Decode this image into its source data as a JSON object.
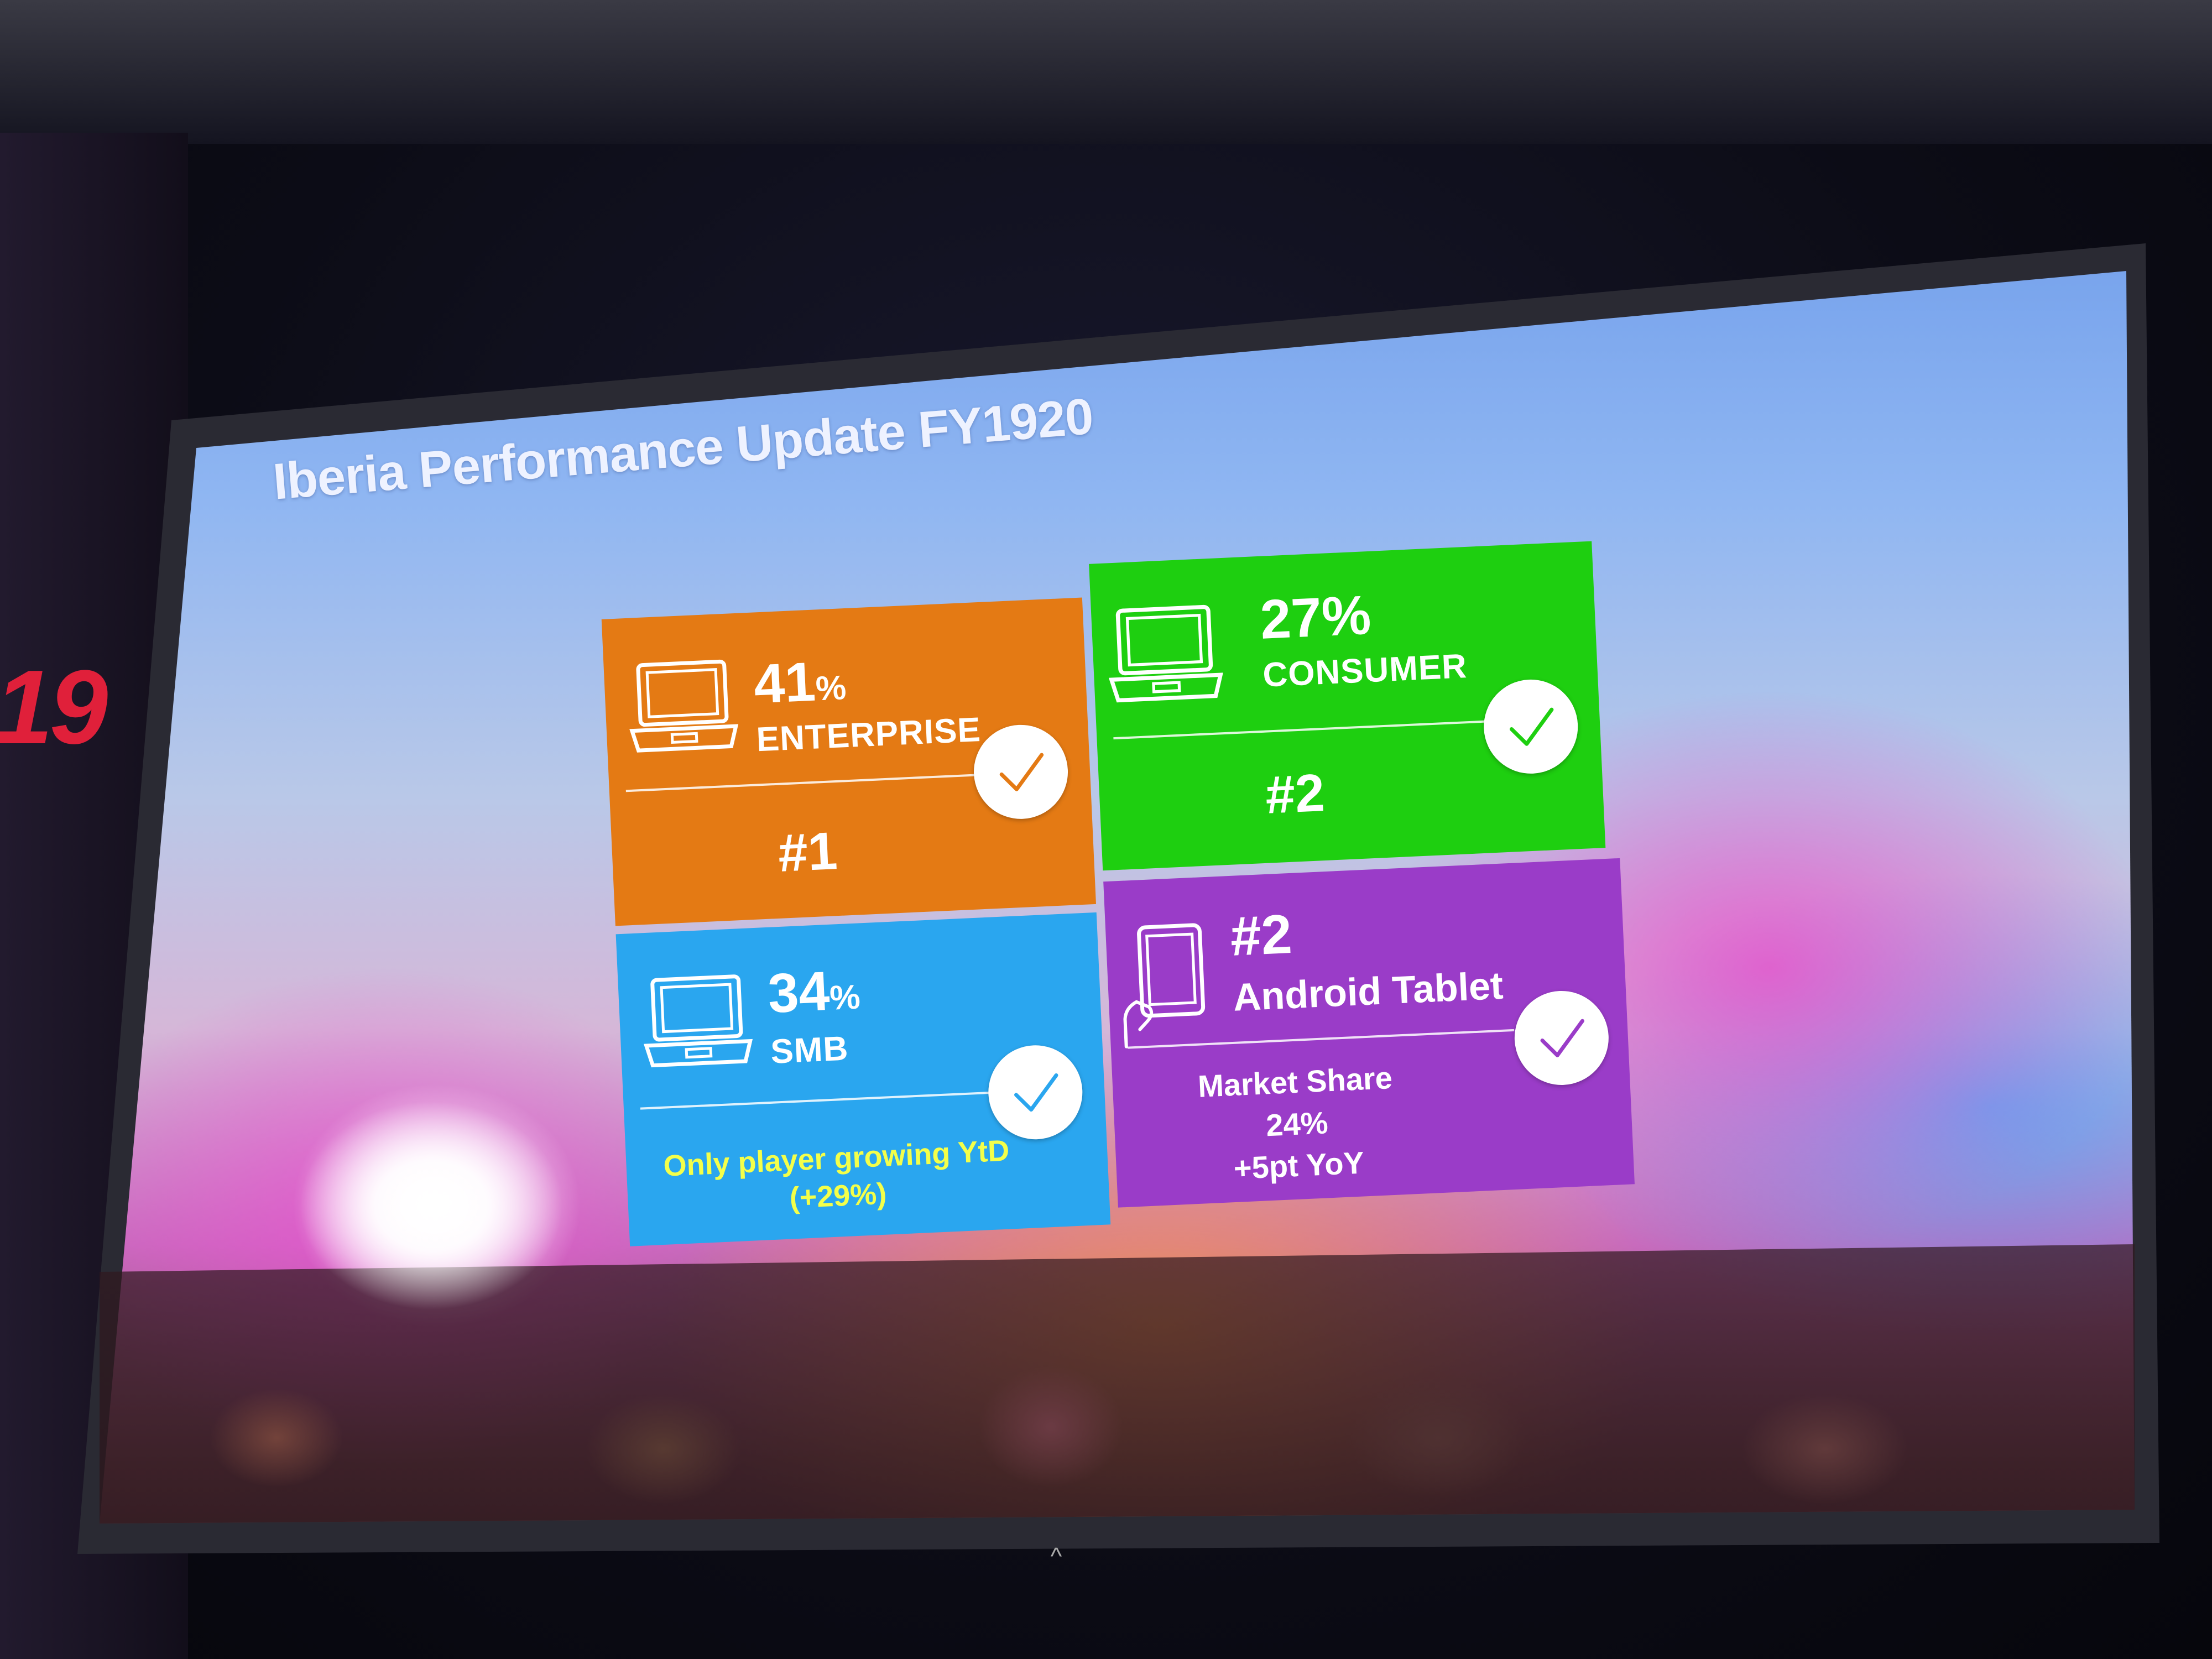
{
  "slide": {
    "title": "Iberia Performance Update FY1920"
  },
  "event_mark": "19",
  "tiles": {
    "enterprise": {
      "value": "41",
      "unit": "%",
      "segment": "ENTERPRISE",
      "rank": "#1",
      "color": "#e47a14",
      "icon": "laptop-icon"
    },
    "consumer": {
      "value": "27%",
      "segment": "CONSUMER",
      "rank": "#2",
      "color": "#1ecf10",
      "icon": "laptop-icon"
    },
    "smb": {
      "value": "34",
      "unit": "%",
      "segment": "SMB",
      "note_line1": "Only player growing YtD",
      "note_line2": "(+29%)",
      "note_color": "#f3ff4a",
      "color": "#2aa6ef",
      "icon": "laptop-icon"
    },
    "android_tablet": {
      "rank": "#2",
      "segment": "Android Tablet",
      "note_line1": "Market Share",
      "note_line2": "24%",
      "note_line3": "+5pt YoY",
      "color": "#9a3cc8",
      "icon": "tablet-in-hand-icon"
    }
  },
  "check_icon_color": "#ffffff",
  "stand_glyph": "^"
}
